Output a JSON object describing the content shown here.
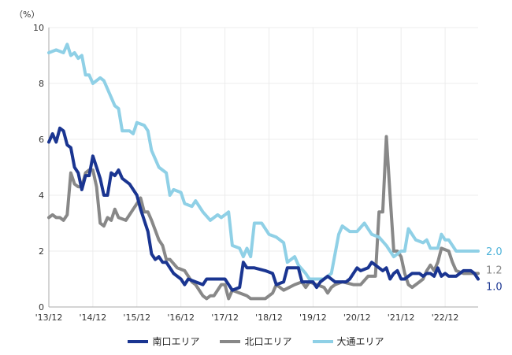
{
  "chart_data": {
    "type": "line",
    "title": "",
    "ylabel": "（%）",
    "xlabel": "",
    "ylim": [
      0,
      10
    ],
    "yticks": [
      "0",
      "2",
      "4",
      "6",
      "8",
      "10"
    ],
    "x_unit": "months since 2013/12",
    "xlim": [
      0,
      117
    ],
    "xticks": [
      {
        "x": 0,
        "label": "'13/12"
      },
      {
        "x": 12,
        "label": "'14/12"
      },
      {
        "x": 24,
        "label": "'15/12"
      },
      {
        "x": 36,
        "label": "'16/12"
      },
      {
        "x": 48,
        "label": "'17/12"
      },
      {
        "x": 60,
        "label": "'18/12"
      },
      {
        "x": 72,
        "label": "'19/12"
      },
      {
        "x": 84,
        "label": "'20/12"
      },
      {
        "x": 96,
        "label": "'21/12"
      },
      {
        "x": 108,
        "label": "'22/12"
      }
    ],
    "grid": true,
    "legend_position": "bottom",
    "series": [
      {
        "name": "南口エリア",
        "color": "#1a3591",
        "end_label": "1.0",
        "points": [
          [
            0,
            5.9
          ],
          [
            1,
            6.2
          ],
          [
            2,
            5.9
          ],
          [
            3,
            6.4
          ],
          [
            4,
            6.3
          ],
          [
            5,
            5.8
          ],
          [
            6,
            5.7
          ],
          [
            7,
            5.0
          ],
          [
            8,
            4.8
          ],
          [
            9,
            4.2
          ],
          [
            10,
            4.7
          ],
          [
            11,
            4.7
          ],
          [
            12,
            5.4
          ],
          [
            13,
            5.0
          ],
          [
            14,
            4.6
          ],
          [
            15,
            4.0
          ],
          [
            16,
            4.0
          ],
          [
            17,
            4.8
          ],
          [
            18,
            4.7
          ],
          [
            19,
            4.9
          ],
          [
            20,
            4.6
          ],
          [
            22,
            4.4
          ],
          [
            24,
            4.0
          ],
          [
            25,
            3.5
          ],
          [
            27,
            2.7
          ],
          [
            28,
            1.9
          ],
          [
            29,
            1.7
          ],
          [
            30,
            1.8
          ],
          [
            31,
            1.6
          ],
          [
            32,
            1.6
          ],
          [
            34,
            1.2
          ],
          [
            36,
            1.0
          ],
          [
            37,
            0.8
          ],
          [
            38,
            1.0
          ],
          [
            40,
            0.9
          ],
          [
            42,
            0.8
          ],
          [
            43,
            1.0
          ],
          [
            46,
            1.0
          ],
          [
            48,
            1.0
          ],
          [
            50,
            0.6
          ],
          [
            52,
            0.7
          ],
          [
            53,
            1.6
          ],
          [
            54,
            1.4
          ],
          [
            56,
            1.4
          ],
          [
            59,
            1.3
          ],
          [
            61,
            1.2
          ],
          [
            62,
            0.8
          ],
          [
            64,
            0.9
          ],
          [
            65,
            1.4
          ],
          [
            68,
            1.4
          ],
          [
            69,
            0.9
          ],
          [
            72,
            0.9
          ],
          [
            73,
            0.7
          ],
          [
            74,
            0.9
          ],
          [
            75,
            1.0
          ],
          [
            76,
            1.1
          ],
          [
            78,
            0.9
          ],
          [
            81,
            0.9
          ],
          [
            82,
            1.0
          ],
          [
            84,
            1.4
          ],
          [
            85,
            1.3
          ],
          [
            87,
            1.4
          ],
          [
            88,
            1.6
          ],
          [
            90,
            1.4
          ],
          [
            91,
            1.3
          ],
          [
            92,
            1.4
          ],
          [
            93,
            1.0
          ],
          [
            94,
            1.2
          ],
          [
            95,
            1.3
          ],
          [
            96,
            1.0
          ],
          [
            97,
            1.0
          ],
          [
            99,
            1.2
          ],
          [
            101,
            1.2
          ],
          [
            102,
            1.1
          ],
          [
            103,
            1.2
          ],
          [
            104,
            1.2
          ],
          [
            105,
            1.1
          ],
          [
            106,
            1.4
          ],
          [
            107,
            1.1
          ],
          [
            108,
            1.2
          ],
          [
            109,
            1.1
          ],
          [
            111,
            1.1
          ],
          [
            113,
            1.3
          ],
          [
            115,
            1.3
          ],
          [
            116,
            1.2
          ],
          [
            117,
            1.0
          ]
        ]
      },
      {
        "name": "北口エリア",
        "color": "#888888",
        "end_label": "1.2",
        "points": [
          [
            0,
            3.2
          ],
          [
            1,
            3.3
          ],
          [
            2,
            3.2
          ],
          [
            3,
            3.2
          ],
          [
            4,
            3.1
          ],
          [
            5,
            3.3
          ],
          [
            6,
            4.8
          ],
          [
            7,
            4.4
          ],
          [
            8,
            4.3
          ],
          [
            9,
            4.3
          ],
          [
            10,
            4.8
          ],
          [
            11,
            4.9
          ],
          [
            12,
            4.9
          ],
          [
            13,
            4.3
          ],
          [
            14,
            3.0
          ],
          [
            15,
            2.9
          ],
          [
            16,
            3.2
          ],
          [
            17,
            3.1
          ],
          [
            18,
            3.5
          ],
          [
            19,
            3.2
          ],
          [
            21,
            3.1
          ],
          [
            23,
            3.5
          ],
          [
            25,
            3.9
          ],
          [
            26,
            3.4
          ],
          [
            27,
            3.4
          ],
          [
            28,
            3.1
          ],
          [
            30,
            2.4
          ],
          [
            31,
            2.2
          ],
          [
            32,
            1.7
          ],
          [
            33,
            1.7
          ],
          [
            35,
            1.4
          ],
          [
            37,
            1.3
          ],
          [
            39,
            0.9
          ],
          [
            40,
            0.8
          ],
          [
            42,
            0.4
          ],
          [
            43,
            0.3
          ],
          [
            44,
            0.4
          ],
          [
            45,
            0.4
          ],
          [
            47,
            0.8
          ],
          [
            48,
            0.8
          ],
          [
            49,
            0.3
          ],
          [
            50,
            0.6
          ],
          [
            52,
            0.5
          ],
          [
            54,
            0.4
          ],
          [
            55,
            0.3
          ],
          [
            59,
            0.3
          ],
          [
            60,
            0.4
          ],
          [
            61,
            0.5
          ],
          [
            62,
            0.8
          ],
          [
            64,
            0.6
          ],
          [
            67,
            0.8
          ],
          [
            69,
            0.9
          ],
          [
            70,
            0.7
          ],
          [
            71,
            0.9
          ],
          [
            73,
            0.8
          ],
          [
            75,
            0.7
          ],
          [
            76,
            0.5
          ],
          [
            77,
            0.7
          ],
          [
            78,
            0.8
          ],
          [
            80,
            0.9
          ],
          [
            83,
            0.8
          ],
          [
            85,
            0.8
          ],
          [
            87,
            1.1
          ],
          [
            89,
            1.1
          ],
          [
            90,
            3.4
          ],
          [
            91,
            3.4
          ],
          [
            92,
            6.1
          ],
          [
            93,
            4.0
          ],
          [
            94,
            2.0
          ],
          [
            95,
            2.0
          ],
          [
            96,
            1.8
          ],
          [
            97,
            1.2
          ],
          [
            98,
            0.8
          ],
          [
            99,
            0.7
          ],
          [
            101,
            0.9
          ],
          [
            102,
            1.0
          ],
          [
            103,
            1.3
          ],
          [
            104,
            1.5
          ],
          [
            105,
            1.3
          ],
          [
            106,
            1.6
          ],
          [
            107,
            2.1
          ],
          [
            109,
            2.0
          ],
          [
            110,
            1.6
          ],
          [
            111,
            1.3
          ],
          [
            113,
            1.2
          ],
          [
            117,
            1.2
          ]
        ]
      },
      {
        "name": "大通エリア",
        "color": "#8fd0e6",
        "end_label": "2.0",
        "points": [
          [
            0,
            9.1
          ],
          [
            2,
            9.2
          ],
          [
            4,
            9.1
          ],
          [
            5,
            9.4
          ],
          [
            6,
            9.0
          ],
          [
            7,
            9.1
          ],
          [
            8,
            8.9
          ],
          [
            9,
            9.0
          ],
          [
            10,
            8.3
          ],
          [
            11,
            8.3
          ],
          [
            12,
            8.0
          ],
          [
            14,
            8.2
          ],
          [
            15,
            8.1
          ],
          [
            17,
            7.5
          ],
          [
            18,
            7.2
          ],
          [
            19,
            7.1
          ],
          [
            20,
            6.3
          ],
          [
            22,
            6.3
          ],
          [
            23,
            6.2
          ],
          [
            24,
            6.6
          ],
          [
            26,
            6.5
          ],
          [
            27,
            6.3
          ],
          [
            28,
            5.6
          ],
          [
            30,
            5.0
          ],
          [
            32,
            4.8
          ],
          [
            33,
            4.0
          ],
          [
            34,
            4.2
          ],
          [
            36,
            4.1
          ],
          [
            37,
            3.7
          ],
          [
            39,
            3.6
          ],
          [
            40,
            3.8
          ],
          [
            42,
            3.4
          ],
          [
            44,
            3.1
          ],
          [
            46,
            3.3
          ],
          [
            47,
            3.2
          ],
          [
            48,
            3.3
          ],
          [
            49,
            3.4
          ],
          [
            50,
            2.2
          ],
          [
            52,
            2.1
          ],
          [
            53,
            1.8
          ],
          [
            54,
            2.1
          ],
          [
            55,
            1.8
          ],
          [
            56,
            3.0
          ],
          [
            58,
            3.0
          ],
          [
            60,
            2.6
          ],
          [
            62,
            2.5
          ],
          [
            64,
            2.3
          ],
          [
            65,
            1.6
          ],
          [
            67,
            1.8
          ],
          [
            68,
            1.5
          ],
          [
            70,
            1.2
          ],
          [
            71,
            1.0
          ],
          [
            73,
            1.0
          ],
          [
            75,
            1.0
          ],
          [
            77,
            1.2
          ],
          [
            79,
            2.6
          ],
          [
            80,
            2.9
          ],
          [
            82,
            2.7
          ],
          [
            84,
            2.7
          ],
          [
            86,
            3.0
          ],
          [
            88,
            2.6
          ],
          [
            90,
            2.5
          ],
          [
            92,
            2.2
          ],
          [
            94,
            1.8
          ],
          [
            96,
            2.0
          ],
          [
            97,
            2.0
          ],
          [
            98,
            2.8
          ],
          [
            100,
            2.4
          ],
          [
            102,
            2.3
          ],
          [
            103,
            2.4
          ],
          [
            104,
            2.1
          ],
          [
            106,
            2.1
          ],
          [
            107,
            2.6
          ],
          [
            108,
            2.4
          ],
          [
            109,
            2.4
          ],
          [
            111,
            2.0
          ],
          [
            117,
            2.0
          ]
        ]
      }
    ]
  }
}
